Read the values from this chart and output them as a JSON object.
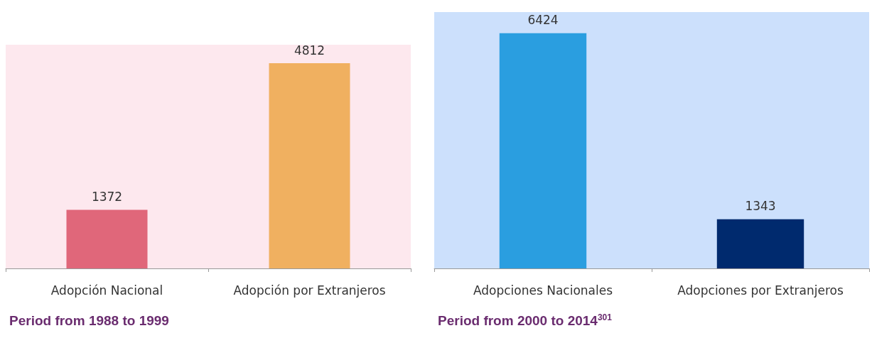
{
  "chart_data": [
    {
      "type": "bar",
      "title": "Period from 1988 to 1999",
      "categories": [
        "Adopción Nacional",
        "Adopción por Extranjeros"
      ],
      "values": [
        1372,
        4812
      ],
      "colors": [
        "#e0677a",
        "#f0b060"
      ],
      "data_labels": true
    },
    {
      "type": "bar",
      "title": "Period from 2000 to 2014$^{301}$",
      "categories": [
        "Adopciones Nacionales",
        "Adopciones por Extranjeros"
      ],
      "values": [
        6424,
        1343
      ],
      "colors": [
        "#2a9ee0",
        "#002a6e"
      ],
      "data_labels": true
    }
  ]
}
